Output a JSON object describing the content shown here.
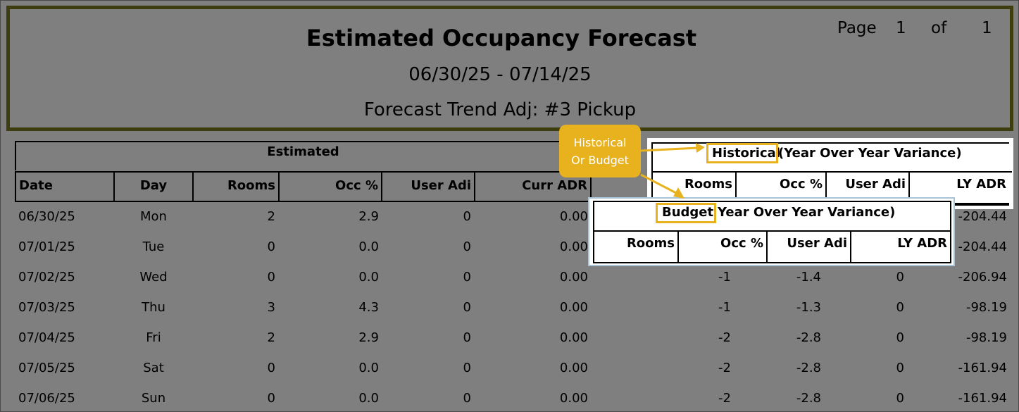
{
  "header": {
    "title": "Estimated Occupancy Forecast",
    "date_range": "06/30/25 - 07/14/25",
    "trend": "Forecast Trend Adj: #3 Pickup",
    "page_label": "Page",
    "page_num": "1",
    "of_label": "of",
    "page_total": "1"
  },
  "estimated": {
    "label": "Estimated",
    "columns": [
      "Date",
      "Day",
      "Rooms",
      "Occ %",
      "User Adi",
      "Curr ADR"
    ]
  },
  "historical": {
    "word": "Historical",
    "rest": "(Year Over Year Variance)",
    "columns": [
      "Rooms",
      "Occ %",
      "User Adi",
      "LY ADR"
    ]
  },
  "budget": {
    "word": "Budget",
    "rest": "Year Over Year Variance)",
    "columns": [
      "Rooms",
      "Occ %",
      "User Adi",
      "LY ADR"
    ]
  },
  "callout": {
    "line1": "Historical",
    "line2": "Or Budget"
  },
  "rows": [
    {
      "date": "06/30/25",
      "day": "Mon",
      "rooms": "2",
      "occ": "2.9",
      "user": "0",
      "adr": "0.00",
      "v_rooms": "",
      "v_occ": "",
      "v_user": "",
      "v_adr": "-204.44"
    },
    {
      "date": "07/01/25",
      "day": "Tue",
      "rooms": "0",
      "occ": "0.0",
      "user": "0",
      "adr": "0.00",
      "v_rooms": "",
      "v_occ": "",
      "v_user": "",
      "v_adr": "-204.44"
    },
    {
      "date": "07/02/25",
      "day": "Wed",
      "rooms": "0",
      "occ": "0.0",
      "user": "0",
      "adr": "0.00",
      "v_rooms": "-1",
      "v_occ": "-1.4",
      "v_user": "0",
      "v_adr": "-206.94"
    },
    {
      "date": "07/03/25",
      "day": "Thu",
      "rooms": "3",
      "occ": "4.3",
      "user": "0",
      "adr": "0.00",
      "v_rooms": "-1",
      "v_occ": "-1.3",
      "v_user": "0",
      "v_adr": "-98.19"
    },
    {
      "date": "07/04/25",
      "day": "Fri",
      "rooms": "2",
      "occ": "2.9",
      "user": "0",
      "adr": "0.00",
      "v_rooms": "-2",
      "v_occ": "-2.8",
      "v_user": "0",
      "v_adr": "-98.19"
    },
    {
      "date": "07/05/25",
      "day": "Sat",
      "rooms": "0",
      "occ": "0.0",
      "user": "0",
      "adr": "0.00",
      "v_rooms": "-2",
      "v_occ": "-2.8",
      "v_user": "0",
      "v_adr": "-161.94"
    },
    {
      "date": "07/06/25",
      "day": "Sun",
      "rooms": "0",
      "occ": "0.0",
      "user": "0",
      "adr": "0.00",
      "v_rooms": "-2",
      "v_occ": "-2.8",
      "v_user": "0",
      "v_adr": "-161.94"
    }
  ],
  "colors": {
    "background": "#7f7f7f",
    "header_border": "#3d3d10",
    "highlight": "#e8b21e"
  }
}
